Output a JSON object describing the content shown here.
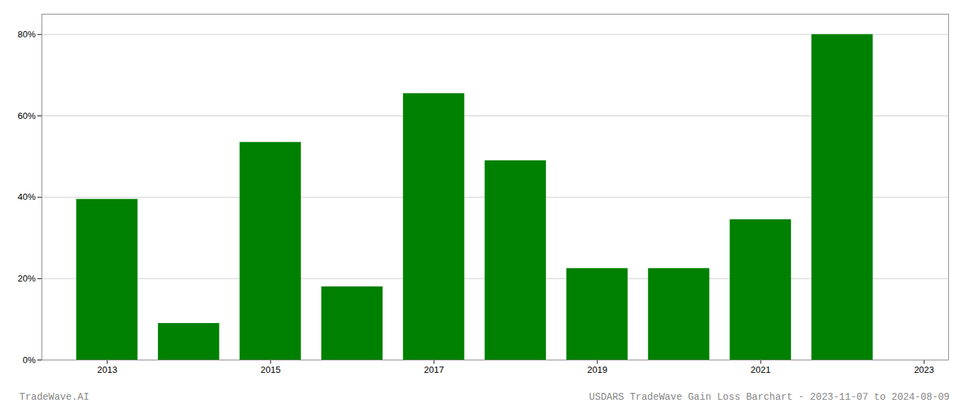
{
  "chart_data": {
    "type": "bar",
    "x": [
      2013,
      2014,
      2015,
      2016,
      2017,
      2018,
      2019,
      2020,
      2021,
      2022
    ],
    "values": [
      39.5,
      9.0,
      53.5,
      18.0,
      65.5,
      49.0,
      22.5,
      22.5,
      34.5,
      80.0
    ],
    "color": "#008000",
    "xlim": [
      2012.2,
      2023.3
    ],
    "xticks": [
      2013,
      2015,
      2017,
      2019,
      2021,
      2023
    ],
    "ylim": [
      0,
      85
    ],
    "yticks": [
      {
        "value": 0,
        "label": "0%"
      },
      {
        "value": 20,
        "label": "20%"
      },
      {
        "value": 40,
        "label": "40%"
      },
      {
        "value": 60,
        "label": "60%"
      },
      {
        "value": 80,
        "label": "80%"
      }
    ],
    "grid": true,
    "annotations": [
      "TradeWave.AI",
      "USDARS TradeWave Gain Loss Barchart - 2023-11-07 to 2024-08-09"
    ]
  }
}
